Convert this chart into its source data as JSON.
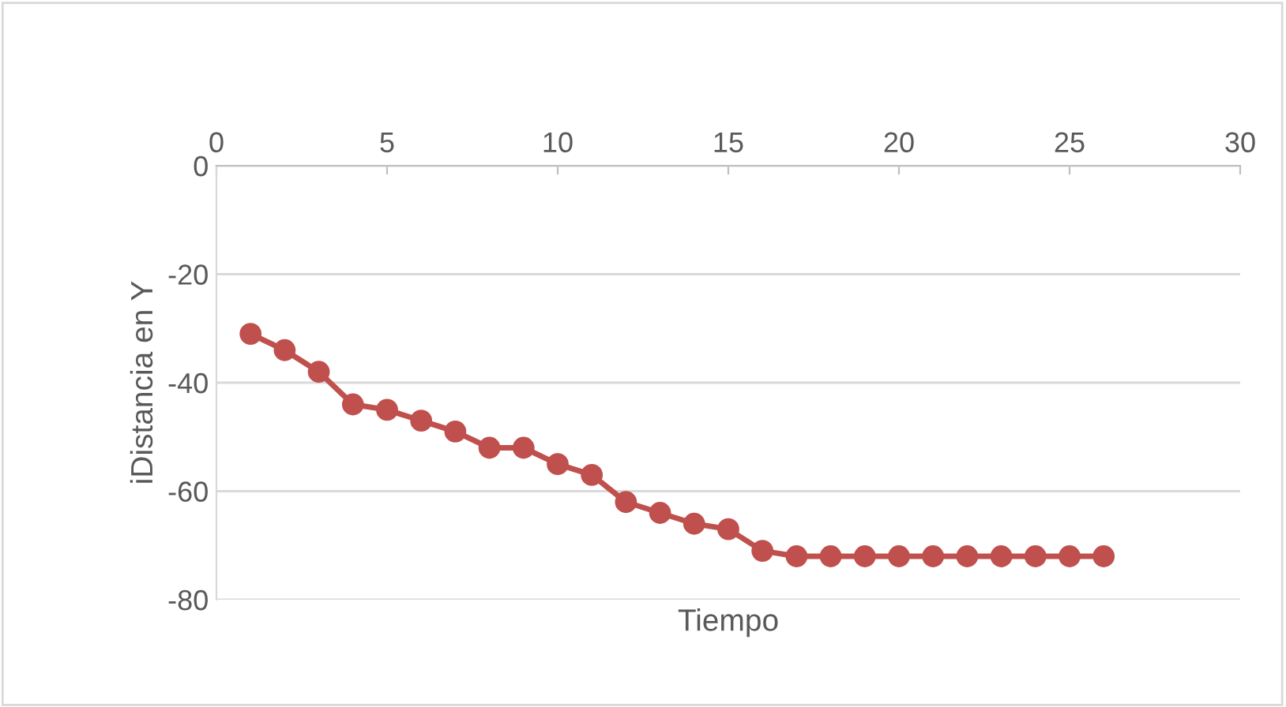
{
  "chart_data": {
    "type": "line",
    "xlabel": "Tiempo",
    "ylabel": "iDistancia en Y",
    "x": [
      1,
      2,
      3,
      4,
      5,
      6,
      7,
      8,
      9,
      10,
      11,
      12,
      13,
      14,
      15,
      16,
      17,
      18,
      19,
      20,
      21,
      22,
      23,
      24,
      25,
      26
    ],
    "series": [
      {
        "color": "#c0504d",
        "values": [
          -31,
          -34,
          -38,
          -44,
          -45,
          -47,
          -49,
          -52,
          -52,
          -55,
          -57,
          -62,
          -64,
          -66,
          -67,
          -71,
          -72,
          -72,
          -72,
          -72,
          -72,
          -72,
          -72,
          -72,
          -72,
          -72
        ]
      }
    ],
    "xlim": [
      0,
      30
    ],
    "xticks": [
      0,
      5,
      10,
      15,
      20,
      25,
      30
    ],
    "ylim": [
      -80,
      0
    ],
    "yticks": [
      -80,
      -60,
      -40,
      -20,
      0
    ],
    "grid": "y",
    "marker": "circle",
    "line_style": "solid"
  }
}
